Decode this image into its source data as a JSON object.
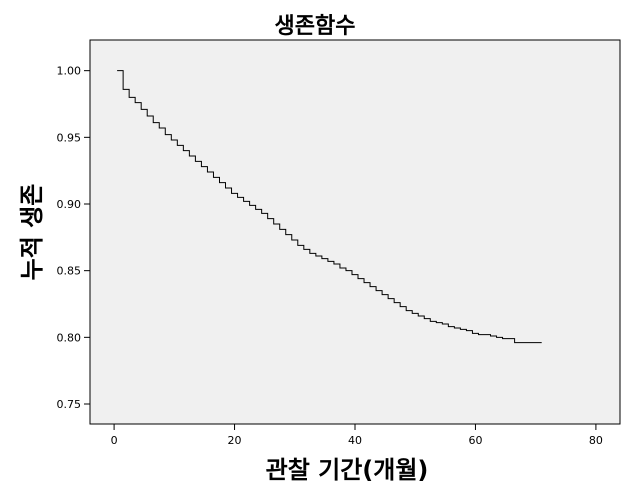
{
  "chart_data": {
    "type": "line",
    "title": "생존함수",
    "xlabel": "관찰 기간(개월)",
    "ylabel": "누적 생존",
    "xlim": [
      -4,
      84
    ],
    "ylim": [
      0.735,
      1.023
    ],
    "x_ticks": [
      0,
      20,
      40,
      60,
      80
    ],
    "y_ticks": [
      0.75,
      0.8,
      0.85,
      0.9,
      0.95,
      1.0
    ],
    "x_tick_labels": [
      "0",
      "20",
      "40",
      "60",
      "80"
    ],
    "y_tick_labels": [
      "0.75",
      "0.80",
      "0.85",
      "0.90",
      "0.95",
      "1.00"
    ],
    "grid": false,
    "legend": "none",
    "plot_background": "#f0f0f0",
    "line_color": "#000000",
    "series": [
      {
        "step": true,
        "x": [
          0.5,
          1.5,
          2.5,
          3.5,
          4.5,
          5.5,
          6.5,
          7.5,
          8.5,
          9.5,
          10.5,
          11.5,
          12.5,
          13.5,
          14.5,
          15.5,
          16.5,
          17.5,
          18.5,
          19.5,
          20.5,
          21.5,
          22.5,
          23.5,
          24.5,
          25.5,
          26.5,
          27.5,
          28.5,
          29.5,
          30.5,
          31.5,
          32.5,
          33.5,
          34.5,
          35.5,
          36.5,
          37.5,
          38.5,
          39.5,
          40.5,
          41.5,
          42.5,
          43.5,
          44.5,
          45.5,
          46.5,
          47.5,
          48.5,
          49.5,
          50.5,
          51.5,
          52.5,
          53.5,
          54.5,
          55.5,
          56.5,
          57.5,
          58.5,
          59.5,
          60.5,
          61.5,
          62.5,
          63.5,
          64.5,
          65.5,
          66.5,
          71.0
        ],
        "y": [
          1.0,
          0.986,
          0.98,
          0.976,
          0.971,
          0.966,
          0.961,
          0.957,
          0.952,
          0.948,
          0.944,
          0.94,
          0.936,
          0.932,
          0.928,
          0.924,
          0.92,
          0.916,
          0.912,
          0.908,
          0.905,
          0.902,
          0.899,
          0.896,
          0.893,
          0.889,
          0.885,
          0.881,
          0.877,
          0.873,
          0.869,
          0.866,
          0.863,
          0.861,
          0.859,
          0.857,
          0.855,
          0.852,
          0.85,
          0.847,
          0.844,
          0.841,
          0.838,
          0.835,
          0.832,
          0.829,
          0.826,
          0.823,
          0.82,
          0.818,
          0.816,
          0.814,
          0.812,
          0.811,
          0.81,
          0.808,
          0.807,
          0.806,
          0.805,
          0.803,
          0.802,
          0.802,
          0.801,
          0.8,
          0.799,
          0.799,
          0.796,
          0.796
        ]
      }
    ]
  }
}
